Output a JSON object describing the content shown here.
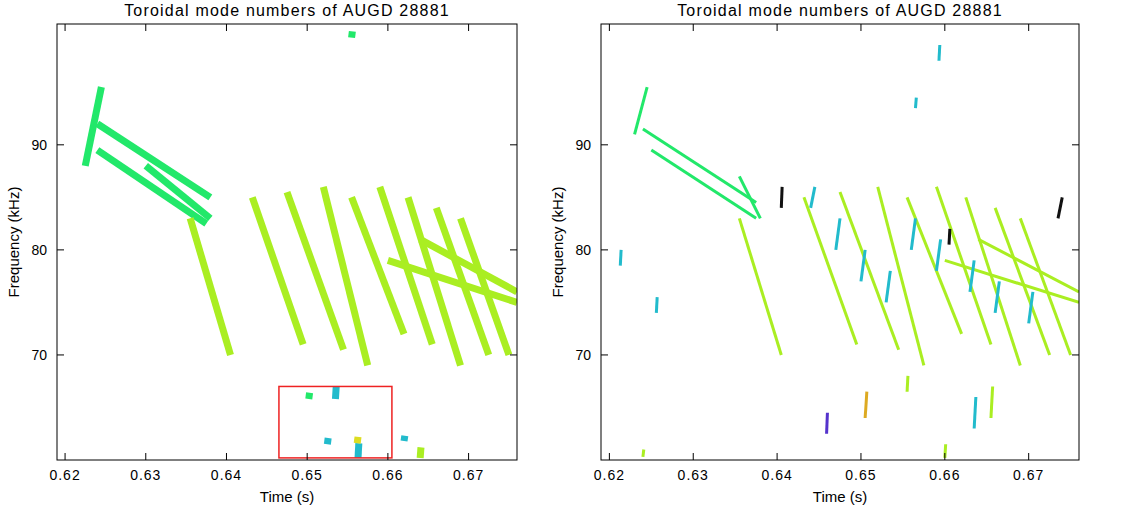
{
  "chart_data": [
    {
      "type": "spectrogram",
      "title": "Toroidal mode numbers of AUGD 28881",
      "x_label": "Time (s)",
      "y_label": "Frequency (kHz)",
      "xlim": [
        0.619,
        0.676
      ],
      "ylim": [
        60,
        101.5
      ],
      "xticks": [
        0.62,
        0.63,
        0.64,
        0.65,
        0.66,
        0.67
      ],
      "yticks": [
        70,
        80,
        90
      ],
      "line_style": "thick",
      "segments": [
        {
          "x": [
            0.6225,
            0.6245
          ],
          "y": [
            88,
            95.5
          ],
          "color": "#22e86a"
        },
        {
          "x": [
            0.624,
            0.638
          ],
          "y": [
            92,
            85
          ],
          "color": "#22e86a"
        },
        {
          "x": [
            0.624,
            0.6375
          ],
          "y": [
            89.5,
            82.5
          ],
          "color": "#22e86a"
        },
        {
          "x": [
            0.63,
            0.638
          ],
          "y": [
            88,
            83
          ],
          "color": "#22e86a"
        },
        {
          "x": [
            0.6355,
            0.6405
          ],
          "y": [
            83,
            70
          ],
          "color": "#aaee22"
        },
        {
          "x": [
            0.6432,
            0.6495
          ],
          "y": [
            85,
            71
          ],
          "color": "#aaee22"
        },
        {
          "x": [
            0.6475,
            0.6545
          ],
          "y": [
            85.5,
            70.5
          ],
          "color": "#aaee22"
        },
        {
          "x": [
            0.652,
            0.6575
          ],
          "y": [
            86,
            69
          ],
          "color": "#aaee22"
        },
        {
          "x": [
            0.6555,
            0.662
          ],
          "y": [
            85,
            72
          ],
          "color": "#aaee22"
        },
        {
          "x": [
            0.659,
            0.6655
          ],
          "y": [
            86,
            71
          ],
          "color": "#aaee22"
        },
        {
          "x": [
            0.6625,
            0.669
          ],
          "y": [
            85,
            69
          ],
          "color": "#aaee22"
        },
        {
          "x": [
            0.666,
            0.6725
          ],
          "y": [
            84,
            70
          ],
          "color": "#aaee22"
        },
        {
          "x": [
            0.669,
            0.675
          ],
          "y": [
            83,
            70
          ],
          "color": "#aaee22"
        },
        {
          "x": [
            0.664,
            0.676
          ],
          "y": [
            81,
            76
          ],
          "color": "#aaee22"
        },
        {
          "x": [
            0.66,
            0.676
          ],
          "y": [
            79,
            75
          ],
          "color": "#aaee22"
        },
        {
          "x": [
            0.6188,
            0.676
          ],
          "y": [
            60,
            60
          ],
          "color": "#ffffff"
        },
        {
          "x": [
            0.6535,
            0.6536
          ],
          "y": [
            65.8,
            67
          ],
          "color": "#22bbcc"
        },
        {
          "x": [
            0.6502,
            0.6503
          ],
          "y": [
            65.8,
            66.4
          ],
          "color": "#22e86a"
        },
        {
          "x": [
            0.6525,
            0.6526
          ],
          "y": [
            61.5,
            62.1
          ],
          "color": "#22bbcc"
        },
        {
          "x": [
            0.6563,
            0.6564
          ],
          "y": [
            60.2,
            61.6
          ],
          "color": "#22bbcc"
        },
        {
          "x": [
            0.6562,
            0.6563
          ],
          "y": [
            61.6,
            62.2
          ],
          "color": "#dddd22"
        },
        {
          "x": [
            0.662,
            0.6621
          ],
          "y": [
            61.8,
            62.3
          ],
          "color": "#22bbcc"
        },
        {
          "x": [
            0.664,
            0.6641
          ],
          "y": [
            60.2,
            61.2
          ],
          "color": "#aaee22"
        },
        {
          "x": [
            0.6555,
            0.6556
          ],
          "y": [
            100.2,
            100.8
          ],
          "color": "#22e86a"
        }
      ],
      "highlight_box": {
        "x": [
          0.6465,
          0.6605
        ],
        "y": [
          60.2,
          67
        ],
        "color": "#ee2222"
      }
    },
    {
      "type": "spectrogram",
      "title": "Toroidal mode numbers of AUGD 28881",
      "x_label": "Time (s)",
      "y_label": "Frequency (kHz)",
      "xlim": [
        0.619,
        0.676
      ],
      "ylim": [
        60,
        101.5
      ],
      "xticks": [
        0.62,
        0.63,
        0.64,
        0.65,
        0.66,
        0.67
      ],
      "yticks": [
        70,
        80,
        90
      ],
      "line_style": "thin",
      "segments": [
        {
          "x": [
            0.623,
            0.6245
          ],
          "y": [
            91,
            95.5
          ],
          "color": "#22e86a"
        },
        {
          "x": [
            0.624,
            0.6375
          ],
          "y": [
            91.5,
            84.5
          ],
          "color": "#22e86a"
        },
        {
          "x": [
            0.625,
            0.6375
          ],
          "y": [
            89.5,
            83
          ],
          "color": "#22e86a"
        },
        {
          "x": [
            0.6355,
            0.638
          ],
          "y": [
            87,
            83
          ],
          "color": "#22e86a"
        },
        {
          "x": [
            0.6355,
            0.6405
          ],
          "y": [
            83,
            70
          ],
          "color": "#aaee22"
        },
        {
          "x": [
            0.6432,
            0.6495
          ],
          "y": [
            85,
            71
          ],
          "color": "#aaee22"
        },
        {
          "x": [
            0.6475,
            0.6545
          ],
          "y": [
            85.5,
            70.5
          ],
          "color": "#aaee22"
        },
        {
          "x": [
            0.652,
            0.6575
          ],
          "y": [
            86,
            69
          ],
          "color": "#aaee22"
        },
        {
          "x": [
            0.6555,
            0.662
          ],
          "y": [
            85,
            72
          ],
          "color": "#aaee22"
        },
        {
          "x": [
            0.659,
            0.6655
          ],
          "y": [
            86,
            71
          ],
          "color": "#aaee22"
        },
        {
          "x": [
            0.6625,
            0.669
          ],
          "y": [
            85,
            69
          ],
          "color": "#aaee22"
        },
        {
          "x": [
            0.666,
            0.6725
          ],
          "y": [
            84,
            70
          ],
          "color": "#aaee22"
        },
        {
          "x": [
            0.669,
            0.675
          ],
          "y": [
            83,
            70
          ],
          "color": "#aaee22"
        },
        {
          "x": [
            0.664,
            0.676
          ],
          "y": [
            81,
            76
          ],
          "color": "#aaee22"
        },
        {
          "x": [
            0.66,
            0.676
          ],
          "y": [
            79,
            75
          ],
          "color": "#aaee22"
        },
        {
          "x": [
            0.6213,
            0.6214
          ],
          "y": [
            78.5,
            80
          ],
          "color": "#22bbcc"
        },
        {
          "x": [
            0.6256,
            0.6257
          ],
          "y": [
            74,
            75.5
          ],
          "color": "#22bbcc"
        },
        {
          "x": [
            0.6405,
            0.6406
          ],
          "y": [
            84,
            86
          ],
          "color": "#111111"
        },
        {
          "x": [
            0.644,
            0.6445
          ],
          "y": [
            84,
            86
          ],
          "color": "#22bbcc"
        },
        {
          "x": [
            0.647,
            0.6475
          ],
          "y": [
            80,
            83
          ],
          "color": "#22bbcc"
        },
        {
          "x": [
            0.65,
            0.6505
          ],
          "y": [
            77,
            80
          ],
          "color": "#22bbcc"
        },
        {
          "x": [
            0.653,
            0.6535
          ],
          "y": [
            75,
            78
          ],
          "color": "#22bbcc"
        },
        {
          "x": [
            0.656,
            0.6565
          ],
          "y": [
            80,
            83
          ],
          "color": "#22bbcc"
        },
        {
          "x": [
            0.659,
            0.6595
          ],
          "y": [
            78,
            81
          ],
          "color": "#22bbcc"
        },
        {
          "x": [
            0.663,
            0.6635
          ],
          "y": [
            76,
            79
          ],
          "color": "#22bbcc"
        },
        {
          "x": [
            0.666,
            0.6665
          ],
          "y": [
            74,
            77
          ],
          "color": "#22bbcc"
        },
        {
          "x": [
            0.67,
            0.6705
          ],
          "y": [
            73,
            76
          ],
          "color": "#22bbcc"
        },
        {
          "x": [
            0.6735,
            0.674
          ],
          "y": [
            83,
            85
          ],
          "color": "#111111"
        },
        {
          "x": [
            0.6605,
            0.6606
          ],
          "y": [
            80.5,
            82
          ],
          "color": "#111111"
        },
        {
          "x": [
            0.6565,
            0.6566
          ],
          "y": [
            93.5,
            94.5
          ],
          "color": "#22bbcc"
        },
        {
          "x": [
            0.6593,
            0.6594
          ],
          "y": [
            98,
            99.5
          ],
          "color": "#22bbcc"
        },
        {
          "x": [
            0.6459,
            0.646
          ],
          "y": [
            62.5,
            64.5
          ],
          "color": "#5533cc"
        },
        {
          "x": [
            0.6505,
            0.6507
          ],
          "y": [
            64,
            66.5
          ],
          "color": "#ddaa22"
        },
        {
          "x": [
            0.6555,
            0.6556
          ],
          "y": [
            66.5,
            68
          ],
          "color": "#aaee22"
        },
        {
          "x": [
            0.6635,
            0.6637
          ],
          "y": [
            63,
            66
          ],
          "color": "#22bbcc"
        },
        {
          "x": [
            0.6655,
            0.6657
          ],
          "y": [
            64,
            67
          ],
          "color": "#aaee22"
        },
        {
          "x": [
            0.66,
            0.6601
          ],
          "y": [
            60.2,
            61.5
          ],
          "color": "#aaee22"
        },
        {
          "x": [
            0.624,
            0.6241
          ],
          "y": [
            60.3,
            61
          ],
          "color": "#aaee22"
        }
      ]
    }
  ]
}
